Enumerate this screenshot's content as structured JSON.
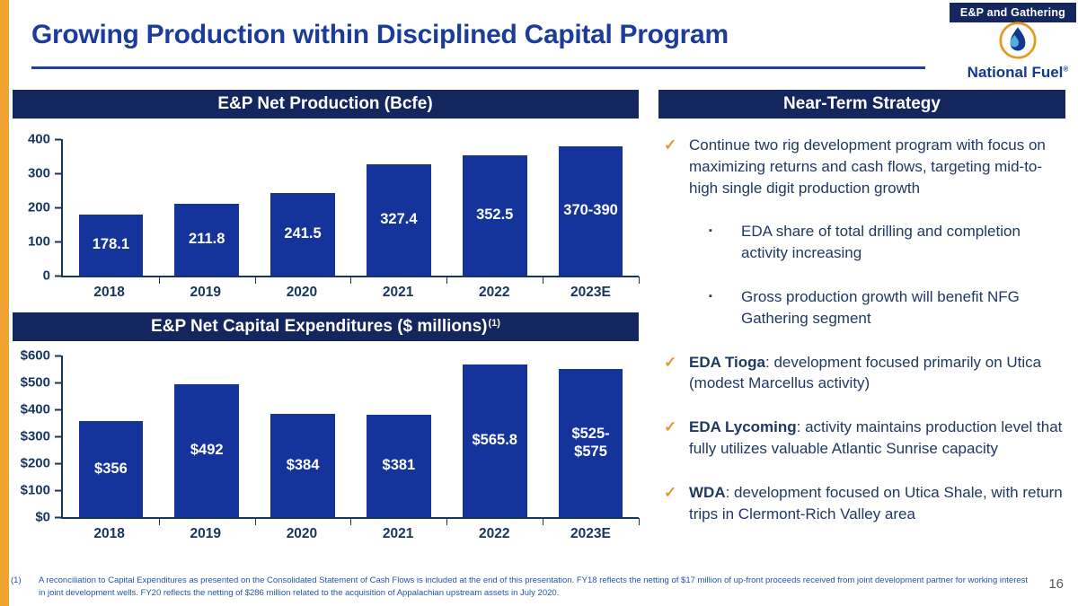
{
  "slide": {
    "badge": "E&P and Gathering",
    "title": "Growing Production within Disciplined Capital Program",
    "page_number": "16",
    "logo": {
      "name": "National Fuel",
      "registered": "®"
    },
    "colors": {
      "header_navy": "#14265E",
      "bar_blue": "#14349C",
      "title_blue": "#1C3C9C",
      "text_navy": "#1F3864",
      "accent_orange": "#F0A232",
      "check_orange": "#E8952F",
      "footnote_blue": "#2456A6",
      "page_gray": "#595959"
    }
  },
  "chart_data": [
    {
      "type": "bar",
      "title": "E&P Net Production (Bcfe)",
      "title_sup": "",
      "categories": [
        "2018",
        "2019",
        "2020",
        "2021",
        "2022",
        "2023E"
      ],
      "values": [
        178.1,
        211.8,
        241.5,
        327.4,
        352.5,
        380
      ],
      "bar_labels": [
        "178.1",
        "211.8",
        "241.5",
        "327.4",
        "352.5",
        "370-390"
      ],
      "ylim": [
        0,
        400
      ],
      "ytick_labels": [
        "0",
        "100",
        "200",
        "300",
        "400"
      ],
      "grid": false,
      "legend": false
    },
    {
      "type": "bar",
      "title": "E&P Net Capital Expenditures ($ millions)",
      "title_sup": "(1)",
      "categories": [
        "2018",
        "2019",
        "2020",
        "2021",
        "2022",
        "2023E"
      ],
      "values": [
        356,
        492,
        384,
        381,
        565.8,
        550
      ],
      "bar_labels": [
        "$356",
        "$492",
        "$384",
        "$381",
        "$565.8",
        "$525-\n$575"
      ],
      "ylim": [
        0,
        600
      ],
      "ytick_labels": [
        "$0",
        "$100",
        "$200",
        "$300",
        "$400",
        "$500",
        "$600"
      ],
      "grid": false,
      "legend": false
    }
  ],
  "strategy": {
    "header": "Near-Term Strategy",
    "icons": {
      "check": "✓",
      "square": "▪"
    },
    "bullets": [
      {
        "level": 1,
        "bold": "",
        "text": "Continue two rig development program with focus on maximizing returns and cash flows, targeting mid-to-high single digit production growth"
      },
      {
        "level": 2,
        "bold": "",
        "text": "EDA share of total drilling and completion activity increasing"
      },
      {
        "level": 2,
        "bold": "",
        "text": "Gross production growth will benefit NFG Gathering segment"
      },
      {
        "level": 1,
        "bold": "EDA Tioga",
        "text": ": development focused primarily on Utica (modest Marcellus activity)"
      },
      {
        "level": 1,
        "bold": "EDA Lycoming",
        "text": ": activity maintains production level that fully utilizes valuable Atlantic Sunrise capacity"
      },
      {
        "level": 1,
        "bold": "WDA",
        "text": ": development focused on Utica Shale, with return trips in Clermont-Rich Valley area"
      }
    ]
  },
  "footnote": {
    "marker": "(1)",
    "text": "A reconciliation to Capital Expenditures as presented on the Consolidated Statement of Cash Flows is included at the end of this presentation. FY18 reflects the netting of $17 million of up-front proceeds received from joint development partner for working interest in joint development wells. FY20 reflects the netting of $286 million related to the acquisition of Appalachian upstream assets in July 2020."
  }
}
